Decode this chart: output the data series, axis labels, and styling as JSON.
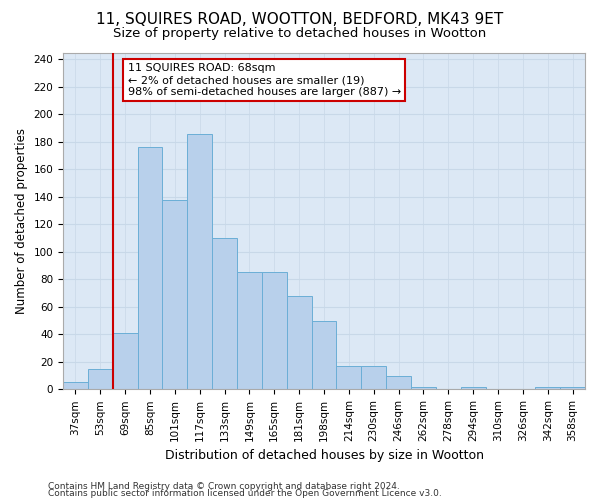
{
  "title": "11, SQUIRES ROAD, WOOTTON, BEDFORD, MK43 9ET",
  "subtitle": "Size of property relative to detached houses in Wootton",
  "xlabel": "Distribution of detached houses by size in Wootton",
  "ylabel": "Number of detached properties",
  "categories": [
    "37sqm",
    "53sqm",
    "69sqm",
    "85sqm",
    "101sqm",
    "117sqm",
    "133sqm",
    "149sqm",
    "165sqm",
    "181sqm",
    "198sqm",
    "214sqm",
    "230sqm",
    "246sqm",
    "262sqm",
    "278sqm",
    "294sqm",
    "310sqm",
    "326sqm",
    "342sqm",
    "358sqm"
  ],
  "values": [
    5,
    15,
    41,
    176,
    138,
    186,
    110,
    85,
    85,
    68,
    50,
    17,
    17,
    10,
    2,
    0,
    2,
    0,
    0,
    2,
    2
  ],
  "bar_color": "#b8d0eb",
  "bar_edge_color": "#6baed6",
  "background_color": "#dce8f5",
  "grid_color": "#c8d8e8",
  "annotation_line1": "11 SQUIRES ROAD: 68sqm",
  "annotation_line2": "← 2% of detached houses are smaller (19)",
  "annotation_line3": "98% of semi-detached houses are larger (887) →",
  "annotation_box_color": "#ffffff",
  "annotation_border_color": "#cc0000",
  "vline_color": "#cc0000",
  "vline_xindex": 2,
  "ylim": [
    0,
    245
  ],
  "yticks": [
    0,
    20,
    40,
    60,
    80,
    100,
    120,
    140,
    160,
    180,
    200,
    220,
    240
  ],
  "footer_line1": "Contains HM Land Registry data © Crown copyright and database right 2024.",
  "footer_line2": "Contains public sector information licensed under the Open Government Licence v3.0.",
  "title_fontsize": 11,
  "subtitle_fontsize": 9.5,
  "xlabel_fontsize": 9,
  "ylabel_fontsize": 8.5,
  "tick_fontsize": 7.5,
  "annotation_fontsize": 8,
  "footer_fontsize": 6.5
}
